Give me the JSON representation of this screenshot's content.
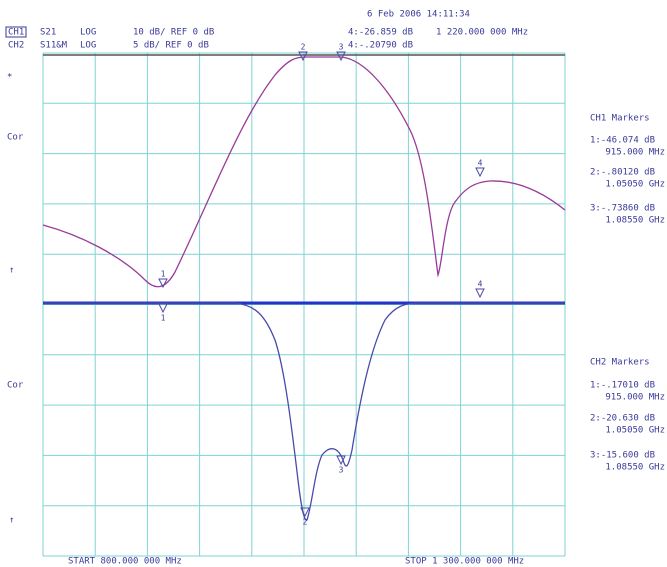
{
  "header": {
    "datetime": "6 Feb 2006  14:11:34",
    "ch1": {
      "label": "CH1",
      "param": "S21",
      "format": "LOG",
      "scale": "10 dB/ REF 0 dB",
      "marker_readout": "4:-26.859 dB",
      "marker_freq": "1 220.000 000 MHz"
    },
    "ch2": {
      "label": "CH2",
      "param": "S11&M",
      "format": "LOG",
      "scale": "5 dB/ REF 0 dB",
      "marker_readout": "4:-.20790 dB"
    }
  },
  "left_labels": [
    "*",
    "Cor",
    "↑",
    "Cor",
    "↑"
  ],
  "ch1_markers": {
    "title": "CH1 Markers",
    "entries": [
      {
        "value": "1:-46.074 dB",
        "freq": "915.000 MHz"
      },
      {
        "value": "2:-.80120 dB",
        "freq": "1.05050 GHz"
      },
      {
        "value": "3:-.73860 dB",
        "freq": "1.08550 GHz"
      }
    ]
  },
  "ch2_markers": {
    "title": "CH2 Markers",
    "entries": [
      {
        "value": "1:-.17010 dB",
        "freq": "915.000 MHz"
      },
      {
        "value": "2:-20.630 dB",
        "freq": "1.05050 GHz"
      },
      {
        "value": "3:-15.600 dB",
        "freq": "1.08550 GHz"
      }
    ]
  },
  "trace_markers": {
    "ch1": [
      "1",
      "2",
      "3",
      "4"
    ],
    "ch2": [
      "1",
      "2",
      "3",
      "4"
    ]
  },
  "footer": {
    "start": "START 800.000 000 MHz",
    "stop": "STOP 1 300.000 000 MHz"
  }
}
